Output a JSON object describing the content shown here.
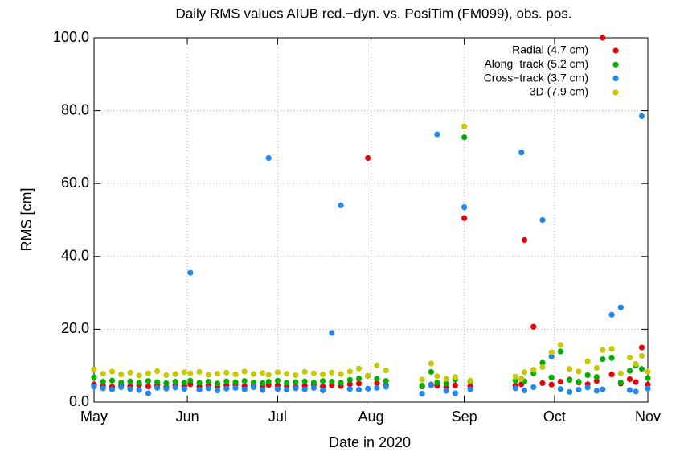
{
  "chart_data": {
    "type": "scatter",
    "title": "Daily RMS values AIUB red.−dyn. vs. PosiTim (FM099), obs. pos.",
    "x_label": "Date in 2020",
    "y_label": "RMS [cm]",
    "xlim": [
      0,
      184
    ],
    "xticks": [
      {
        "value": 0,
        "label": "May"
      },
      {
        "value": 31,
        "label": "Jun"
      },
      {
        "value": 61,
        "label": "Jul"
      },
      {
        "value": 92,
        "label": "Aug"
      },
      {
        "value": 123,
        "label": "Sep"
      },
      {
        "value": 153,
        "label": "Oct"
      },
      {
        "value": 184,
        "label": "Nov"
      }
    ],
    "ylim": [
      0,
      100
    ],
    "yticks": [
      {
        "value": 0,
        "label": "0.0"
      },
      {
        "value": 20,
        "label": "20.0"
      },
      {
        "value": 40,
        "label": "40.0"
      },
      {
        "value": 60,
        "label": "60.0"
      },
      {
        "value": 80,
        "label": "80.0"
      },
      {
        "value": 100,
        "label": "100.0"
      }
    ],
    "grid": true,
    "legend": "top-right",
    "x": [
      0,
      3,
      6,
      9,
      12,
      15,
      18,
      21,
      24,
      27,
      30,
      32,
      35,
      38,
      41,
      44,
      47,
      50,
      53,
      56,
      58,
      61,
      64,
      67,
      70,
      73,
      76,
      79,
      82,
      85,
      88,
      91,
      94,
      97,
      109,
      112,
      114,
      117,
      120,
      123,
      125,
      140,
      142,
      143,
      146,
      149,
      152,
      155,
      158,
      161,
      164,
      167,
      169,
      172,
      175,
      178,
      180,
      182,
      184
    ],
    "series": [
      {
        "name": "Radial (4.7 cm)",
        "color": "#e8000b",
        "values": [
          4.8,
          4.5,
          4.2,
          4.6,
          4.4,
          4.7,
          4.3,
          4.5,
          4.1,
          4.6,
          4.4,
          4.9,
          4.3,
          4.5,
          4.2,
          4.6,
          4.8,
          4.4,
          4.5,
          4.3,
          4.7,
          4.6,
          4.4,
          4.2,
          4.5,
          4.8,
          4.3,
          4.6,
          4.4,
          4.9,
          5.1,
          67,
          5.2,
          4.6,
          4.3,
          4.8,
          4.5,
          4.1,
          4.6,
          50.5,
          4.4,
          4.5,
          4.9,
          44.5,
          20.7,
          5.2,
          4.8,
          5.6,
          6.2,
          5.4,
          4.9,
          5.8,
          100,
          7.6,
          5.1,
          6.3,
          5.5,
          15,
          4.8
        ]
      },
      {
        "name": "Along−track (5.2 cm)",
        "color": "#00b000",
        "values": [
          6.8,
          5.6,
          5.9,
          5.4,
          5.7,
          5.3,
          5.8,
          5.5,
          5.2,
          5.6,
          5.4,
          5.9,
          5.3,
          5.6,
          5.1,
          5.7,
          5.5,
          5.8,
          5.4,
          5.2,
          5.6,
          5.9,
          5.3,
          5.5,
          5.7,
          5.4,
          5.8,
          5.6,
          5.3,
          6.1,
          6.5,
          7.2,
          6.4,
          5.8,
          4.5,
          8.3,
          5.4,
          5.1,
          6.2,
          72.7,
          5.6,
          5.9,
          6.4,
          5.7,
          7.9,
          10.8,
          6.8,
          13.9,
          6.1,
          5.6,
          7.4,
          6.9,
          11.8,
          12.1,
          5.4,
          8.6,
          10,
          9.1,
          6.6
        ]
      },
      {
        "name": "Cross−track (3.7 cm)",
        "color": "#1e88f0",
        "values": [
          4.2,
          3.8,
          3.5,
          4.1,
          3.6,
          3.3,
          2.4,
          3.9,
          3.7,
          4.0,
          3.6,
          35.5,
          3.4,
          3.8,
          3.2,
          3.7,
          3.9,
          3.5,
          4.1,
          3.3,
          67,
          3.6,
          3.4,
          3.8,
          3.5,
          3.9,
          3.2,
          19,
          54,
          3.6,
          3.4,
          3.7,
          3.9,
          4.2,
          2.3,
          4.6,
          73.5,
          3.1,
          2.4,
          53.5,
          3.5,
          3.8,
          68.5,
          3.2,
          4.1,
          50,
          12.5,
          3.6,
          2.8,
          3.4,
          4.0,
          3.1,
          3.5,
          24,
          26,
          3.3,
          2.9,
          78.5,
          3.7
        ]
      },
      {
        "name": "3D (7.9 cm)",
        "color": "#c8c800",
        "values": [
          9.0,
          7.8,
          8.4,
          7.6,
          8.1,
          7.3,
          7.9,
          8.5,
          7.4,
          7.7,
          8.2,
          7.9,
          8.3,
          7.5,
          7.8,
          8.1,
          7.6,
          8.4,
          7.7,
          8.0,
          7.5,
          8.2,
          7.8,
          7.4,
          8.3,
          7.9,
          7.6,
          8.1,
          7.7,
          8.4,
          9.2,
          7.3,
          10.1,
          8.7,
          6.2,
          10.6,
          7.1,
          6.4,
          6.9,
          75.7,
          5.9,
          7.0,
          6.3,
          8.2,
          8.9,
          9.6,
          13.7,
          15.7,
          9.1,
          8.4,
          11.2,
          9.4,
          14.3,
          14.6,
          7.9,
          12.2,
          10.5,
          12.7,
          8.4
        ]
      }
    ]
  }
}
